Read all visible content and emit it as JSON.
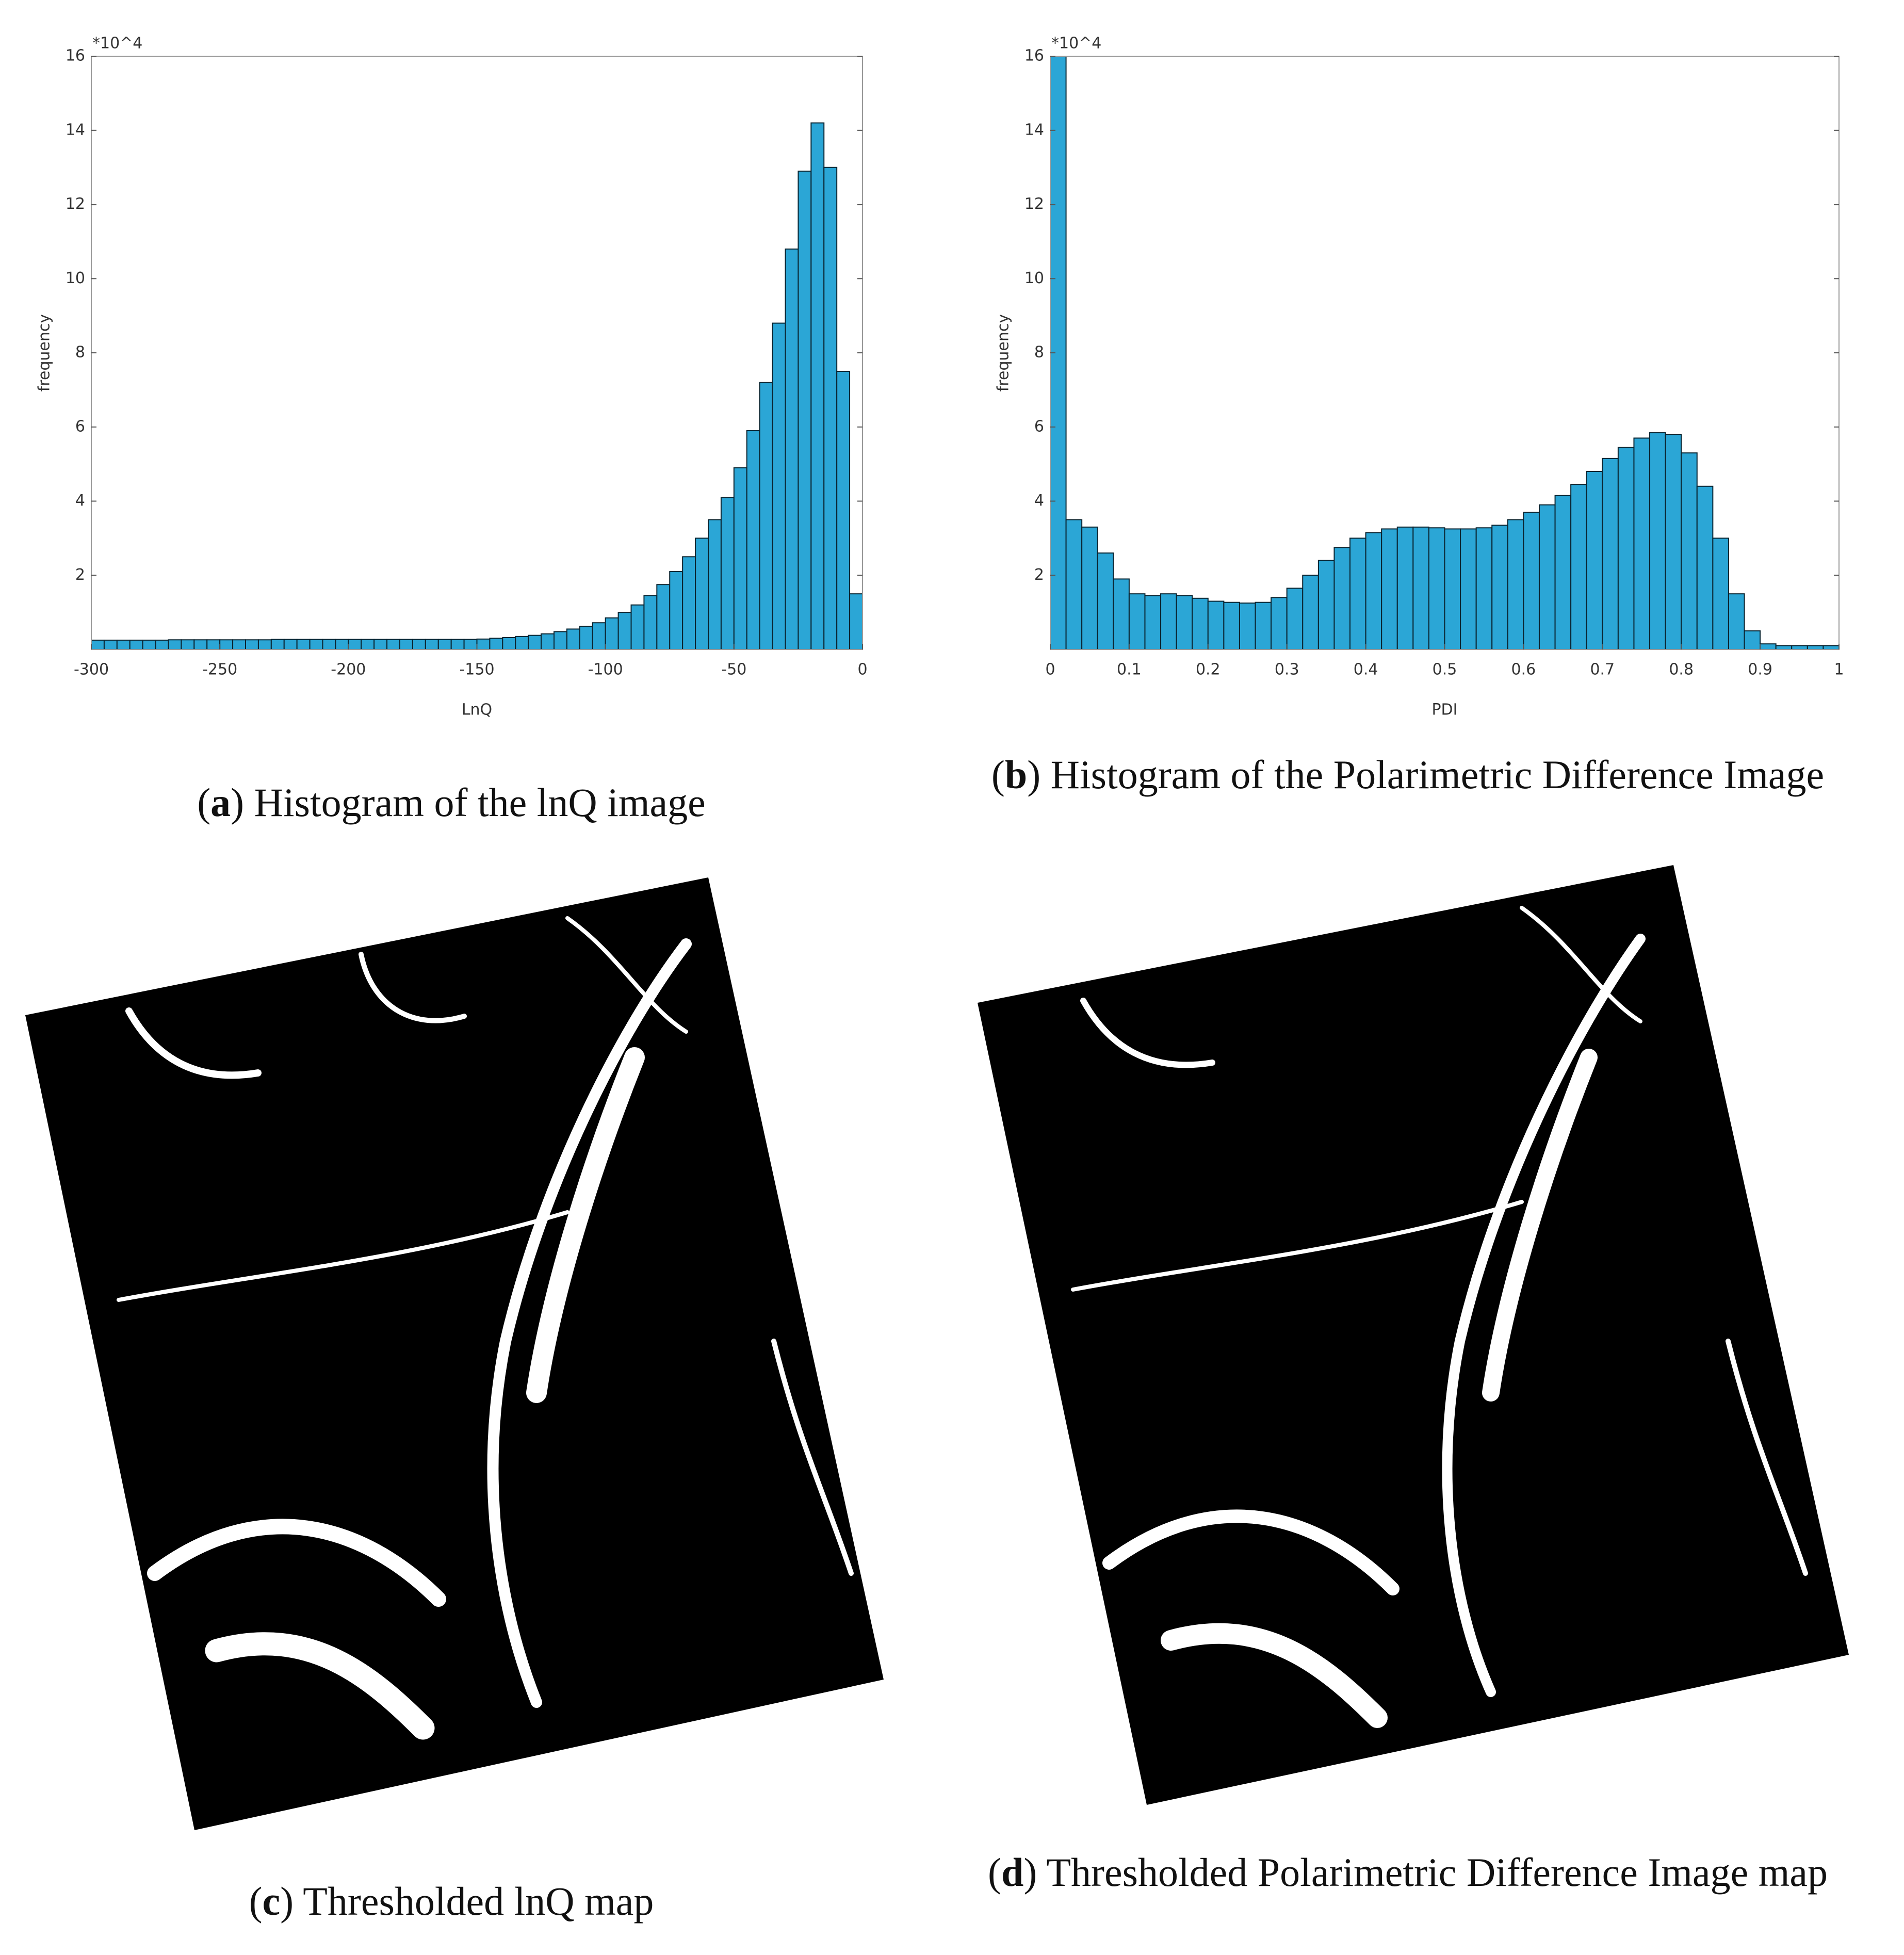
{
  "chart_data": [
    {
      "type": "histogram",
      "annotation": "*10^4",
      "xlabel": "LnQ",
      "ylabel": "frequency",
      "color": "#2ba6d6",
      "bins": [
        -300,
        -295,
        -290,
        -285,
        -280,
        -275,
        -270,
        -265,
        -260,
        -255,
        -250,
        -245,
        -240,
        -235,
        -230,
        -225,
        -220,
        -215,
        -210,
        -205,
        -200,
        -195,
        -190,
        -185,
        -180,
        -175,
        -170,
        -165,
        -160,
        -155,
        -150,
        -145,
        -140,
        -135,
        -130,
        -125,
        -120,
        -115,
        -110,
        -105,
        -100,
        -95,
        -90,
        -85,
        -80,
        -75,
        -70,
        -65,
        -60,
        -55,
        -50,
        -45,
        -40,
        -35,
        -30,
        -25,
        -20,
        -15,
        -10,
        -5,
        0
      ],
      "counts": [
        0.25,
        0.25,
        0.25,
        0.25,
        0.25,
        0.25,
        0.26,
        0.26,
        0.26,
        0.26,
        0.26,
        0.26,
        0.26,
        0.26,
        0.27,
        0.27,
        0.27,
        0.27,
        0.27,
        0.27,
        0.27,
        0.27,
        0.27,
        0.27,
        0.27,
        0.27,
        0.27,
        0.27,
        0.27,
        0.27,
        0.28,
        0.3,
        0.32,
        0.35,
        0.38,
        0.42,
        0.48,
        0.55,
        0.62,
        0.72,
        0.85,
        1.0,
        1.2,
        1.45,
        1.75,
        2.1,
        2.5,
        3.0,
        3.5,
        4.1,
        4.9,
        5.9,
        7.2,
        8.8,
        10.8,
        12.9,
        14.2,
        13.0,
        7.5,
        1.5
      ],
      "xlim": [
        -300,
        0
      ],
      "xticks": [
        -300,
        -250,
        -200,
        -150,
        -100,
        -50,
        0
      ],
      "ylim": [
        0,
        16
      ],
      "yticks": [
        2,
        4,
        6,
        8,
        10,
        12,
        14,
        16
      ]
    },
    {
      "type": "histogram",
      "annotation": "*10^4",
      "xlabel": "PDI",
      "ylabel": "frequency",
      "color": "#2ba6d6",
      "bins": [
        0,
        0.02,
        0.04,
        0.06,
        0.08,
        0.1,
        0.12,
        0.14,
        0.16,
        0.18,
        0.2,
        0.22,
        0.24,
        0.26,
        0.28,
        0.3,
        0.32,
        0.34,
        0.36,
        0.38,
        0.4,
        0.42,
        0.44,
        0.46,
        0.48,
        0.5,
        0.52,
        0.54,
        0.56,
        0.58,
        0.6,
        0.62,
        0.64,
        0.66,
        0.68,
        0.7,
        0.72,
        0.74,
        0.76,
        0.78,
        0.8,
        0.82,
        0.84,
        0.86,
        0.88,
        0.9,
        0.92,
        0.94,
        0.96,
        0.98,
        1
      ],
      "counts": [
        16,
        3.5,
        3.3,
        2.6,
        1.9,
        1.5,
        1.45,
        1.5,
        1.45,
        1.38,
        1.3,
        1.27,
        1.25,
        1.27,
        1.4,
        1.65,
        2.0,
        2.4,
        2.75,
        3.0,
        3.15,
        3.25,
        3.3,
        3.3,
        3.28,
        3.25,
        3.25,
        3.28,
        3.35,
        3.5,
        3.7,
        3.9,
        4.15,
        4.45,
        4.8,
        5.15,
        5.45,
        5.7,
        5.85,
        5.8,
        5.3,
        4.4,
        3.0,
        1.5,
        0.5,
        0.15,
        0.1,
        0.1,
        0.1,
        0.1
      ],
      "xlim": [
        0,
        1
      ],
      "xticks": [
        0,
        0.1,
        0.2,
        0.3,
        0.4,
        0.5,
        0.6,
        0.7,
        0.8,
        0.9,
        1
      ],
      "ylim": [
        0,
        16
      ],
      "yticks": [
        2,
        4,
        6,
        8,
        10,
        12,
        14,
        16
      ]
    }
  ],
  "captions": [
    {
      "open": "(",
      "letter": "a",
      "text": ") Histogram of the lnQ image"
    },
    {
      "open": "(",
      "letter": "b",
      "text": ") Histogram of the Polarimetric Difference Image"
    },
    {
      "open": "(",
      "letter": "c",
      "text": ") Thresholded lnQ map"
    },
    {
      "open": "(",
      "letter": "d",
      "text": ") Thresholded Polarimetric Difference Image map"
    }
  ]
}
